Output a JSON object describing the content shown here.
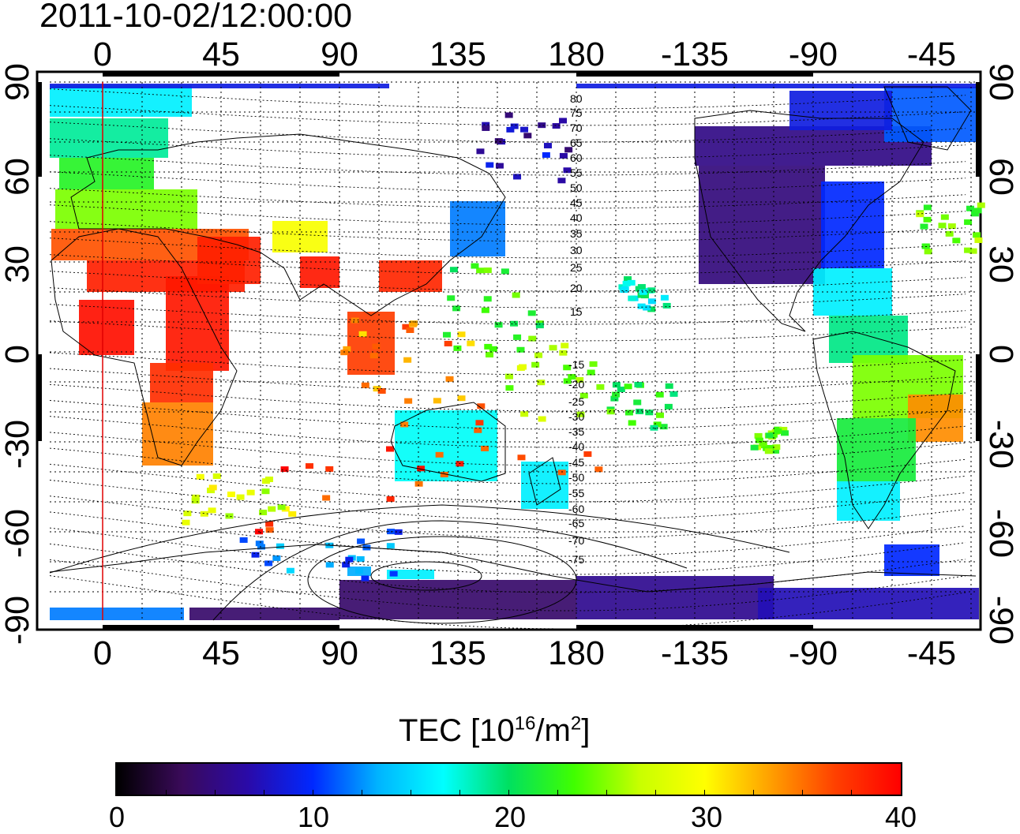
{
  "title": "2011-10-02/12:00:00",
  "map": {
    "x_tick_labels": [
      "0",
      "45",
      "90",
      "135",
      "180",
      "-135",
      "-90",
      "-45"
    ],
    "y_tick_labels": [
      "90",
      "60",
      "30",
      "0",
      "-30",
      "-60",
      "-90"
    ],
    "contour_labels_north": [
      "80",
      "75",
      "70",
      "65",
      "60",
      "55",
      "50",
      "45",
      "40",
      "35",
      "30",
      "25",
      "20",
      "15"
    ],
    "contour_labels_south": [
      "-15",
      "-20",
      "-25",
      "-30",
      "-35",
      "-40",
      "-45",
      "-50",
      "-55",
      "-60",
      "-65",
      "-70",
      "-75"
    ]
  },
  "colorbar": {
    "title_main": "TEC  [10",
    "title_exp": "16",
    "title_unit": "/m",
    "title_exp2": "2",
    "title_close": "]",
    "tick_labels": [
      "0",
      "10",
      "20",
      "30",
      "40"
    ],
    "colormap": [
      "#000000",
      "#3a0a5a",
      "#2a0aa8",
      "#0028ff",
      "#00b4ff",
      "#00ffff",
      "#00e060",
      "#40ff00",
      "#c8ff00",
      "#ffff00",
      "#ffa000",
      "#ff4000",
      "#ff0000"
    ]
  }
}
